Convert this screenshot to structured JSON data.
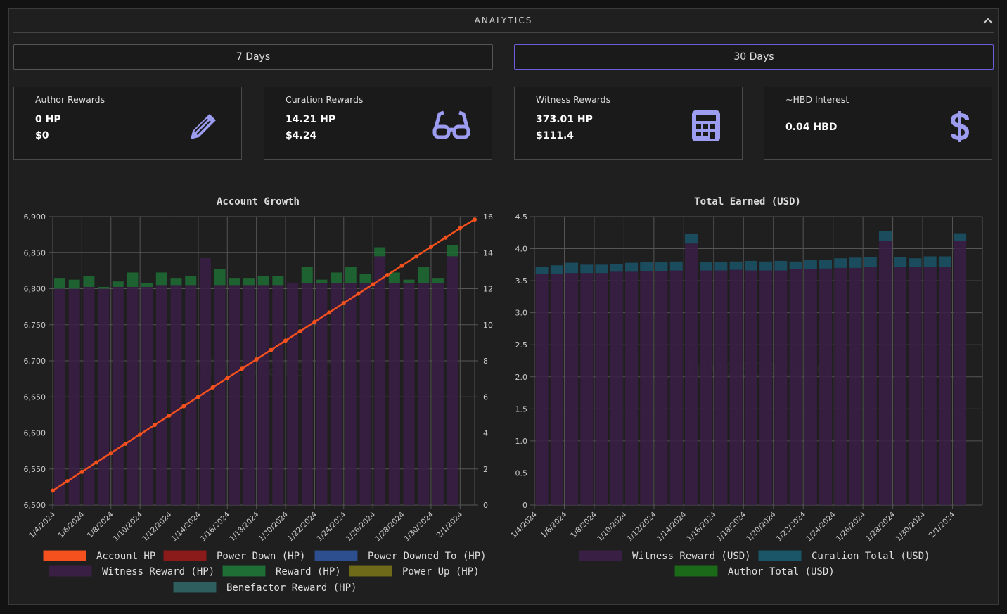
{
  "header": {
    "title": "ANALYTICS"
  },
  "periods": [
    "7 Days",
    "30 Days"
  ],
  "cards": [
    {
      "label": "Author Rewards",
      "lines": [
        "0 HP",
        "$0"
      ]
    },
    {
      "label": "Curation Rewards",
      "lines": [
        "14.21 HP",
        "$4.24"
      ]
    },
    {
      "label": "Witness Rewards",
      "lines": [
        "373.01 HP",
        "$111.4"
      ]
    },
    {
      "label": "~HBD Interest",
      "lines": [
        "0.04 HBD"
      ]
    }
  ],
  "chart_data": [
    {
      "type": "combo",
      "title": "Account Growth",
      "watermark": "hivestats.io",
      "grid": true,
      "categories": [
        "1/4/2024",
        null,
        "1/6/2024",
        null,
        "1/8/2024",
        null,
        "1/10/2024",
        null,
        "1/12/2024",
        null,
        "1/14/2024",
        null,
        "1/16/2024",
        null,
        "1/18/2024",
        null,
        "1/20/2024",
        null,
        "1/22/2024",
        null,
        "1/24/2024",
        null,
        "1/26/2024",
        null,
        "1/28/2024",
        null,
        "1/30/2024",
        null,
        "2/1/2024",
        null
      ],
      "ylim": [
        6500,
        6900
      ],
      "yticks": [
        {
          "value": 6500,
          "label": "6,500"
        },
        {
          "value": 6550,
          "label": "6,550"
        },
        {
          "value": 6600,
          "label": "6,600"
        },
        {
          "value": 6650,
          "label": "6,650"
        },
        {
          "value": 6700,
          "label": "6,700"
        },
        {
          "value": 6750,
          "label": "6,750"
        },
        {
          "value": 6800,
          "label": "6,800"
        },
        {
          "value": 6850,
          "label": "6,850"
        },
        {
          "value": 6900,
          "label": "6,900"
        }
      ],
      "y2lim": [
        0,
        16
      ],
      "y2ticks": [
        0,
        2,
        4,
        6,
        8,
        10,
        12,
        14,
        16
      ],
      "series": [
        {
          "name": "Account HP",
          "type": "line",
          "axis": "y",
          "color": "#f4511e",
          "values": [
            6520,
            6533,
            6546,
            6559,
            6572,
            6585,
            6598,
            6611,
            6624,
            6637,
            6650,
            6663,
            6676,
            6689,
            6702,
            6715,
            6728,
            6741,
            6754,
            6767,
            6780,
            6793,
            6806,
            6819,
            6832,
            6845,
            6858,
            6871,
            6884,
            6896
          ]
        },
        {
          "name": "Power Down (HP)",
          "type": "bar",
          "axis": "y2",
          "color": "#8b1a1a"
        },
        {
          "name": "Power Downed To (HP)",
          "type": "bar",
          "axis": "y2",
          "color": "#2e4f8f"
        },
        {
          "name": "Witness Reward (HP)",
          "type": "bar",
          "axis": "y2",
          "color": "#3a1f45",
          "values": [
            12.0,
            12.0,
            12.1,
            12.0,
            12.1,
            12.1,
            12.1,
            12.2,
            12.2,
            12.2,
            13.7,
            12.2,
            12.2,
            12.2,
            12.2,
            12.2,
            12.3,
            12.3,
            12.3,
            12.3,
            12.3,
            12.3,
            13.8,
            12.3,
            12.3,
            12.3,
            12.3,
            13.8,
            null,
            null
          ]
        },
        {
          "name": "Reward (HP)",
          "type": "bar",
          "axis": "y2",
          "color": "#1e6e35",
          "values": [
            0.6,
            0.5,
            0.6,
            0.1,
            0.3,
            0.8,
            0.2,
            0.7,
            0.4,
            0.5,
            0,
            0.9,
            0.4,
            0.4,
            0.5,
            0.5,
            0,
            0.9,
            0.2,
            0.6,
            0.9,
            0.5,
            0.5,
            0.6,
            0.2,
            0.9,
            0.3,
            0.6,
            null,
            null
          ]
        },
        {
          "name": "Power Up (HP)",
          "type": "bar",
          "axis": "y2",
          "color": "#6e6a1a"
        },
        {
          "name": "Benefactor Reward (HP)",
          "type": "bar",
          "axis": "y2",
          "color": "#2e5e5e"
        }
      ]
    },
    {
      "type": "bar",
      "title": "Total Earned (USD)",
      "watermark": "hivestats.io",
      "grid": true,
      "categories": [
        "1/4/2024",
        null,
        "1/6/2024",
        null,
        "1/8/2024",
        null,
        "1/10/2024",
        null,
        "1/12/2024",
        null,
        "1/14/2024",
        null,
        "1/16/2024",
        null,
        "1/18/2024",
        null,
        "1/20/2024",
        null,
        "1/22/2024",
        null,
        "1/24/2024",
        null,
        "1/26/2024",
        null,
        "1/28/2024",
        null,
        "1/30/2024",
        null,
        "2/1/2024",
        null
      ],
      "ylim": [
        0,
        4.5
      ],
      "yticks": [
        0,
        0.5,
        {
          "value": 1,
          "label": "1.0"
        },
        1.5,
        {
          "value": 2,
          "label": "2.0"
        },
        2.5,
        {
          "value": 3,
          "label": "3.0"
        },
        3.5,
        {
          "value": 4,
          "label": "4.0"
        },
        4.5
      ],
      "series": [
        {
          "name": "Witness Reward (USD)",
          "type": "bar",
          "axis": "y",
          "color": "#3a1f45",
          "values": [
            3.6,
            3.6,
            3.62,
            3.62,
            3.62,
            3.64,
            3.64,
            3.65,
            3.65,
            3.66,
            4.08,
            3.66,
            3.66,
            3.67,
            3.66,
            3.66,
            3.66,
            3.68,
            3.68,
            3.69,
            3.7,
            3.7,
            3.72,
            4.12,
            3.71,
            3.71,
            3.71,
            3.71,
            4.12,
            null
          ]
        },
        {
          "name": "Curation Total (USD)",
          "type": "bar",
          "axis": "y",
          "color": "#1b5568",
          "values": [
            0.11,
            0.14,
            0.16,
            0.13,
            0.13,
            0.12,
            0.14,
            0.14,
            0.14,
            0.14,
            0.15,
            0.13,
            0.13,
            0.13,
            0.15,
            0.14,
            0.15,
            0.12,
            0.14,
            0.14,
            0.15,
            0.16,
            0.15,
            0.15,
            0.16,
            0.14,
            0.17,
            0.17,
            0.12,
            null
          ]
        },
        {
          "name": "Author Total (USD)",
          "type": "bar",
          "axis": "y",
          "color": "#1a6a1a"
        }
      ]
    }
  ]
}
